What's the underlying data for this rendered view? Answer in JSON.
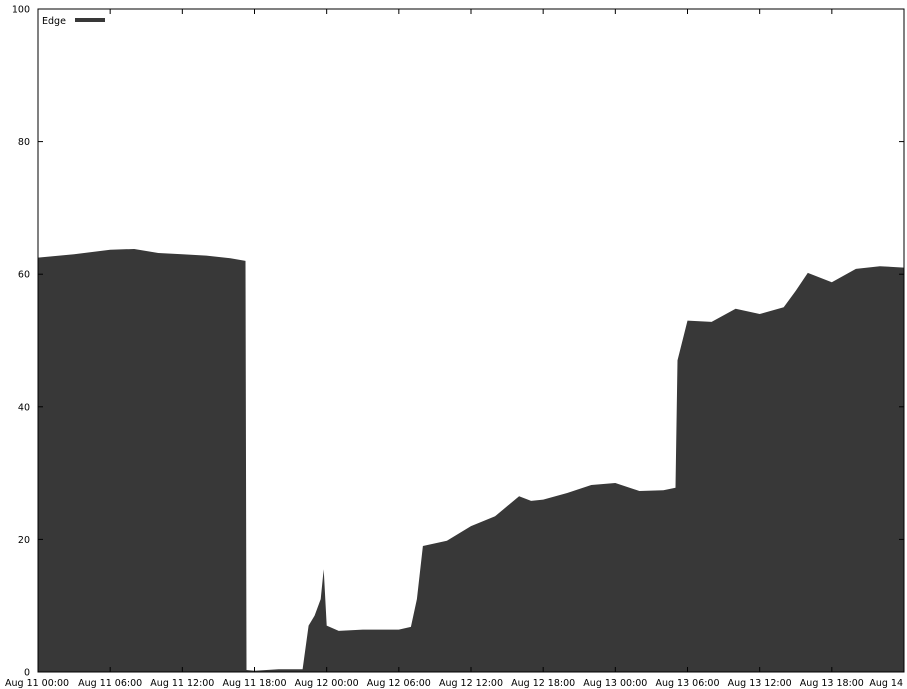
{
  "chart_data": {
    "type": "area",
    "title": "",
    "xlabel": "",
    "ylabel": "",
    "ylim": [
      0,
      100
    ],
    "xlim": [
      "2014-08-11 00:00",
      "2014-08-14 00:00"
    ],
    "grid": false,
    "legend": {
      "placement": "top-left"
    },
    "y_ticks": [
      "0",
      "20",
      "40",
      "60",
      "80",
      "100"
    ],
    "x_ticks": [
      "Aug 11 00:00",
      "Aug 11 06:00",
      "Aug 11 12:00",
      "Aug 11 18:00",
      "Aug 12 00:00",
      "Aug 12 06:00",
      "Aug 12 12:00",
      "Aug 12 18:00",
      "Aug 13 00:00",
      "Aug 13 06:00",
      "Aug 13 12:00",
      "Aug 13 18:00",
      "Aug 14"
    ],
    "series": [
      {
        "name": "Edge",
        "color": "#383838",
        "points": [
          [
            "2014-08-11 00:00",
            62.5
          ],
          [
            "2014-08-11 03:00",
            63.0
          ],
          [
            "2014-08-11 06:00",
            63.7
          ],
          [
            "2014-08-11 08:00",
            63.8
          ],
          [
            "2014-08-11 10:00",
            63.2
          ],
          [
            "2014-08-11 12:00",
            63.0
          ],
          [
            "2014-08-11 14:00",
            62.8
          ],
          [
            "2014-08-11 16:00",
            62.4
          ],
          [
            "2014-08-11 17:15",
            62.0
          ],
          [
            "2014-08-11 17:20",
            0.3
          ],
          [
            "2014-08-11 18:00",
            0.2
          ],
          [
            "2014-08-11 20:00",
            0.4
          ],
          [
            "2014-08-11 22:00",
            0.4
          ],
          [
            "2014-08-11 22:30",
            7.0
          ],
          [
            "2014-08-11 23:00",
            8.5
          ],
          [
            "2014-08-11 23:30",
            11.0
          ],
          [
            "2014-08-11 23:45",
            15.5
          ],
          [
            "2014-08-12 00:00",
            7.0
          ],
          [
            "2014-08-12 01:00",
            6.2
          ],
          [
            "2014-08-12 03:00",
            6.4
          ],
          [
            "2014-08-12 06:00",
            6.4
          ],
          [
            "2014-08-12 07:00",
            6.8
          ],
          [
            "2014-08-12 07:30",
            11.0
          ],
          [
            "2014-08-12 08:00",
            19.0
          ],
          [
            "2014-08-12 10:00",
            19.8
          ],
          [
            "2014-08-12 12:00",
            22.0
          ],
          [
            "2014-08-12 14:00",
            23.5
          ],
          [
            "2014-08-12 16:00",
            26.5
          ],
          [
            "2014-08-12 17:00",
            25.8
          ],
          [
            "2014-08-12 18:00",
            26.0
          ],
          [
            "2014-08-12 20:00",
            27.0
          ],
          [
            "2014-08-12 22:00",
            28.2
          ],
          [
            "2014-08-13 00:00",
            28.5
          ],
          [
            "2014-08-13 02:00",
            27.3
          ],
          [
            "2014-08-13 04:00",
            27.4
          ],
          [
            "2014-08-13 05:00",
            27.8
          ],
          [
            "2014-08-13 05:10",
            47.0
          ],
          [
            "2014-08-13 06:00",
            53.0
          ],
          [
            "2014-08-13 08:00",
            52.8
          ],
          [
            "2014-08-13 10:00",
            54.8
          ],
          [
            "2014-08-13 12:00",
            54.0
          ],
          [
            "2014-08-13 14:00",
            55.0
          ],
          [
            "2014-08-13 15:00",
            57.5
          ],
          [
            "2014-08-13 16:00",
            60.2
          ],
          [
            "2014-08-13 18:00",
            58.8
          ],
          [
            "2014-08-13 20:00",
            60.8
          ],
          [
            "2014-08-13 22:00",
            61.2
          ],
          [
            "2014-08-14 00:00",
            61.0
          ]
        ]
      }
    ]
  }
}
